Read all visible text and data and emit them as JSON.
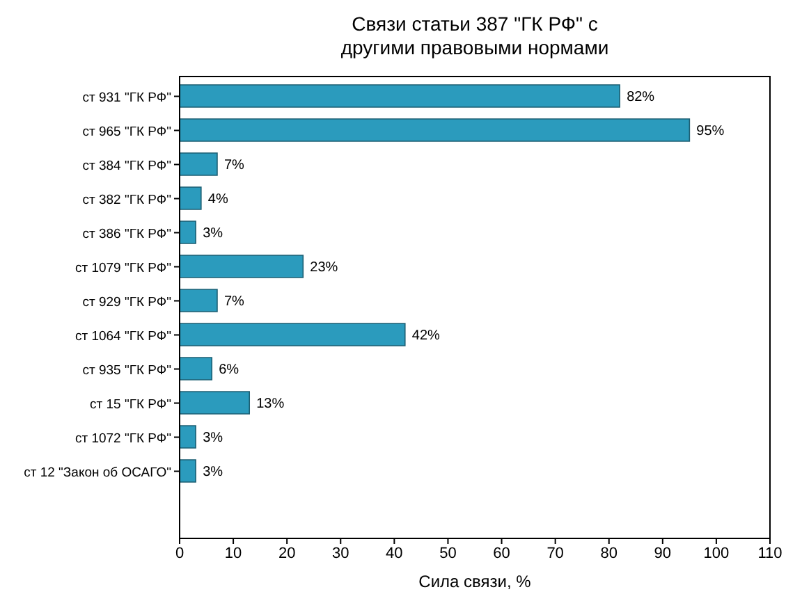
{
  "chart_data": {
    "type": "bar",
    "orientation": "horizontal",
    "title": "Связи статьи 387 \"ГК РФ\" с\nдругими правовыми нормами",
    "xlabel": "Сила связи, %",
    "categories": [
      "ст 931 \"ГК РФ\"",
      "ст 965 \"ГК РФ\"",
      "ст 384 \"ГК РФ\"",
      "ст 382 \"ГК РФ\"",
      "ст 386 \"ГК РФ\"",
      "ст 1079 \"ГК РФ\"",
      "ст 929 \"ГК РФ\"",
      "ст 1064 \"ГК РФ\"",
      "ст 935 \"ГК РФ\"",
      "ст 15 \"ГК РФ\"",
      "ст 1072 \"ГК РФ\"",
      "ст 12 \"Закон об ОСАГО\""
    ],
    "values": [
      82,
      95,
      7,
      4,
      3,
      23,
      7,
      42,
      6,
      13,
      3,
      3
    ],
    "value_labels": [
      "82%",
      "95%",
      "7%",
      "4%",
      "3%",
      "23%",
      "7%",
      "42%",
      "6%",
      "13%",
      "3%",
      "3%"
    ],
    "color": "#2b9bbd",
    "xlim": [
      0,
      110
    ],
    "xticks": [
      0,
      10,
      20,
      30,
      40,
      50,
      60,
      70,
      80,
      90,
      100,
      110
    ],
    "grid": false
  }
}
